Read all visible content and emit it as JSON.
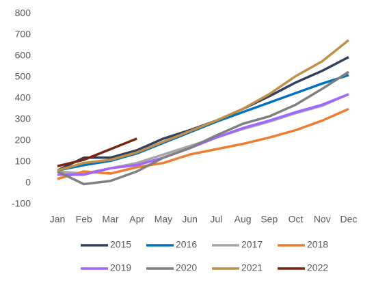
{
  "chart_data": {
    "type": "line",
    "categories": [
      "Jan",
      "Feb",
      "Mar",
      "Apr",
      "May",
      "Jun",
      "Jul",
      "Aug",
      "Sep",
      "Oct",
      "Nov",
      "Dec"
    ],
    "series": [
      {
        "name": "2015",
        "color": "#333f5f",
        "values": [
          60,
          120,
          120,
          155,
          210,
          250,
          295,
          350,
          410,
          475,
          530,
          595
        ]
      },
      {
        "name": "2016",
        "color": "#0070c0",
        "values": [
          60,
          85,
          105,
          140,
          190,
          240,
          290,
          335,
          380,
          425,
          470,
          510
        ]
      },
      {
        "name": "2017",
        "color": "#a5a5a5",
        "values": [
          55,
          45,
          70,
          95,
          135,
          175,
          215,
          255,
          290,
          330,
          365,
          420
        ]
      },
      {
        "name": "2018",
        "color": "#ed7d31",
        "values": [
          20,
          55,
          45,
          75,
          95,
          135,
          160,
          185,
          215,
          250,
          295,
          350
        ]
      },
      {
        "name": "2019",
        "color": "#a066ff",
        "values": [
          40,
          40,
          70,
          85,
          120,
          165,
          215,
          260,
          295,
          335,
          370,
          420
        ]
      },
      {
        "name": "2020",
        "color": "#7f7f7f",
        "values": [
          55,
          -5,
          10,
          55,
          120,
          165,
          225,
          280,
          315,
          370,
          445,
          525
        ]
      },
      {
        "name": "2021",
        "color": "#c09048",
        "values": [
          60,
          95,
          110,
          145,
          195,
          245,
          295,
          350,
          420,
          505,
          575,
          675
        ]
      },
      {
        "name": "2022",
        "color": "#7b2410",
        "values": [
          80,
          110,
          160,
          210,
          null,
          null,
          null,
          null,
          null,
          null,
          null,
          null
        ]
      }
    ],
    "ylim": [
      -100,
      800
    ],
    "yticks": [
      -100,
      0,
      100,
      200,
      300,
      400,
      500,
      600,
      700,
      800
    ],
    "grid": false
  }
}
